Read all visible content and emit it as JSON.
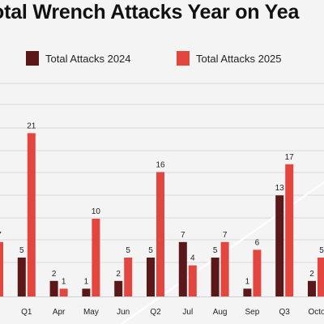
{
  "chart_data": {
    "type": "bar",
    "title": "otal Wrench Attacks Year on Yea",
    "categories": [
      "",
      "Q1",
      "Apr",
      "May",
      "Jun",
      "Q2",
      "Jul",
      "Aug",
      "Sep",
      "Q3",
      "Octo"
    ],
    "series": [
      {
        "name": "Total Attacks 2024",
        "values": [
          null,
          5,
          2,
          1,
          2,
          5,
          7,
          5,
          1,
          13,
          2
        ],
        "color": "#5a1818"
      },
      {
        "name": "Total Attacks 2025",
        "values": [
          7,
          21,
          1,
          10,
          5,
          16,
          4,
          7,
          6,
          17,
          5
        ],
        "color": "#e2463f"
      }
    ],
    "ylim": [
      0,
      24
    ],
    "xlabel": "",
    "ylabel": "",
    "grid": true,
    "legend_position": "top"
  },
  "colors": {
    "background": "#f4f4f5",
    "gridline": "#d7d7da",
    "series_2024": "#5a1818",
    "series_2025": "#e2463f"
  }
}
